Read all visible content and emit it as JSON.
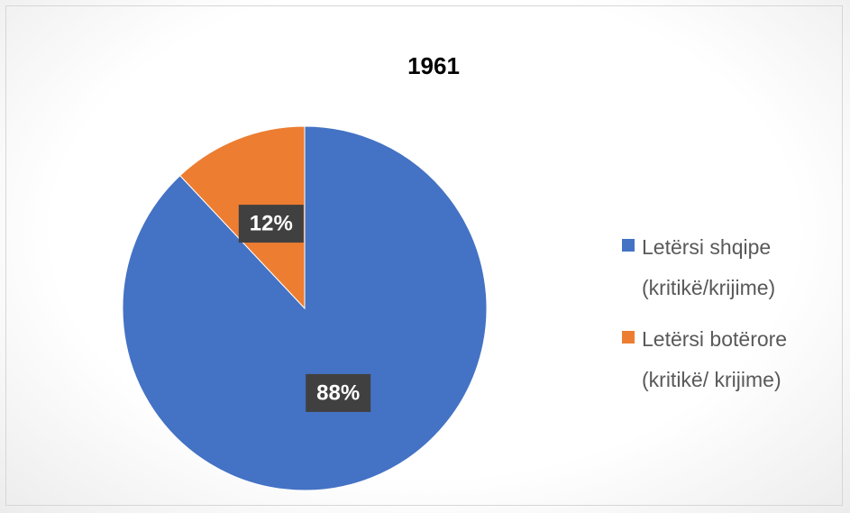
{
  "chart_data": {
    "type": "pie",
    "title": "1961",
    "categories": [
      "Letërsi shqipe (kritikë/krijime)",
      "Letërsi botërore (kritikë/ krijime)"
    ],
    "values": [
      88,
      12
    ],
    "value_labels": [
      "88%",
      "12%"
    ],
    "colors": [
      "#4472c4",
      "#ed7d31"
    ],
    "legend": "right"
  }
}
